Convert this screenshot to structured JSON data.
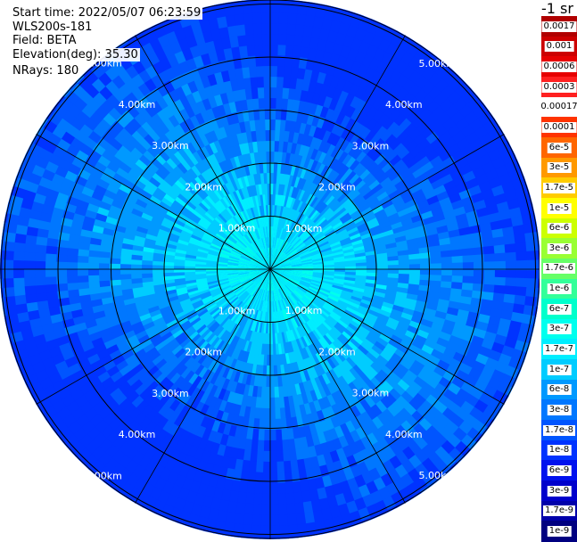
{
  "info": {
    "start_time": "Start time: 2022/05/07 06:23:59",
    "instrument": "WLS200s-181",
    "field": "Field: BETA",
    "elevation": "Elevation(deg): 35.30",
    "nrays": "NRays: 180"
  },
  "colorbar": {
    "units": "-1 sr",
    "labels": [
      "0.0017",
      "0.001",
      "0.0006",
      "0.0003",
      "0.00017",
      "0.0001",
      "6e-5",
      "3e-5",
      "1.7e-5",
      "1e-5",
      "6e-6",
      "3e-6",
      "1.7e-6",
      "1e-6",
      "6e-7",
      "3e-7",
      "1.7e-7",
      "1e-7",
      "6e-8",
      "3e-8",
      "1.7e-8",
      "1e-8",
      "6e-9",
      "3e-9",
      "1.7e-9",
      "1e-9"
    ],
    "colors": [
      "#b00000",
      "#cc0000",
      "#e60000",
      "#ff2020",
      "#ffffff",
      "#ff3300",
      "#ff6600",
      "#ff9900",
      "#ffcc00",
      "#ffff00",
      "#ccff00",
      "#99ff33",
      "#66ff66",
      "#33ff99",
      "#00ffcc",
      "#00ffee",
      "#00eeff",
      "#00ccff",
      "#0099ff",
      "#0077ff",
      "#0055ff",
      "#0033ff",
      "#0011ee",
      "#0000cc",
      "#0000aa",
      "#000080"
    ]
  },
  "range_rings": {
    "labels": [
      "1.00km",
      "2.00km",
      "3.00km",
      "4.00km",
      "5.00km"
    ]
  }
}
